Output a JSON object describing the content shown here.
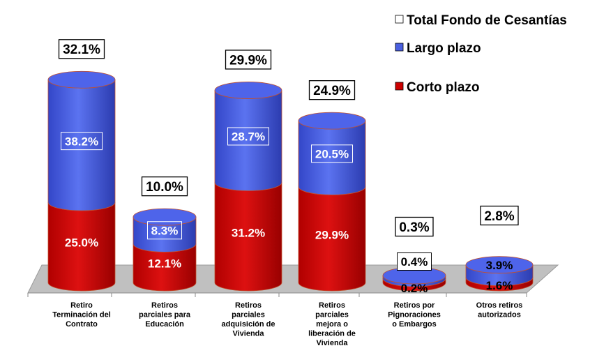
{
  "chart_data": {
    "type": "bar",
    "stacked": true,
    "style": "3d-cylinder",
    "legend_position": "top-right",
    "categories": [
      [
        "Retiro",
        "Terminación del",
        "Contrato"
      ],
      [
        "Retiros",
        "parciales para",
        "Educación"
      ],
      [
        "Retiros",
        "parciales",
        "adquisición de",
        "Vivienda"
      ],
      [
        "Retiros",
        "parciales",
        "mejora o",
        "liberación de",
        "Vivienda"
      ],
      [
        "Retiros por",
        "Pignoraciones",
        "o Embargos"
      ],
      [
        "Otros retiros",
        "autorizados"
      ]
    ],
    "series": [
      {
        "name": "Total Fondo de Cesantías",
        "color": "#ffffff",
        "values": [
          32.1,
          10.0,
          29.9,
          24.9,
          0.3,
          2.8
        ],
        "labels": [
          "32.1%",
          "10.0%",
          "29.9%",
          "24.9%",
          "0.3%",
          "2.8%"
        ]
      },
      {
        "name": "Largo plazo",
        "color": "#4a5fe0",
        "values": [
          38.2,
          8.3,
          28.7,
          20.5,
          0.4,
          3.9
        ],
        "labels": [
          "38.2%",
          "8.3%",
          "28.7%",
          "20.5%",
          "0.4%",
          "3.9%"
        ]
      },
      {
        "name": "Corto plazo",
        "color": "#cc0000",
        "values": [
          25.0,
          12.1,
          31.2,
          29.9,
          0.2,
          1.6
        ],
        "labels": [
          "25.0%",
          "12.1%",
          "31.2%",
          "29.9%",
          "0.2%",
          "1.6%"
        ]
      }
    ]
  }
}
